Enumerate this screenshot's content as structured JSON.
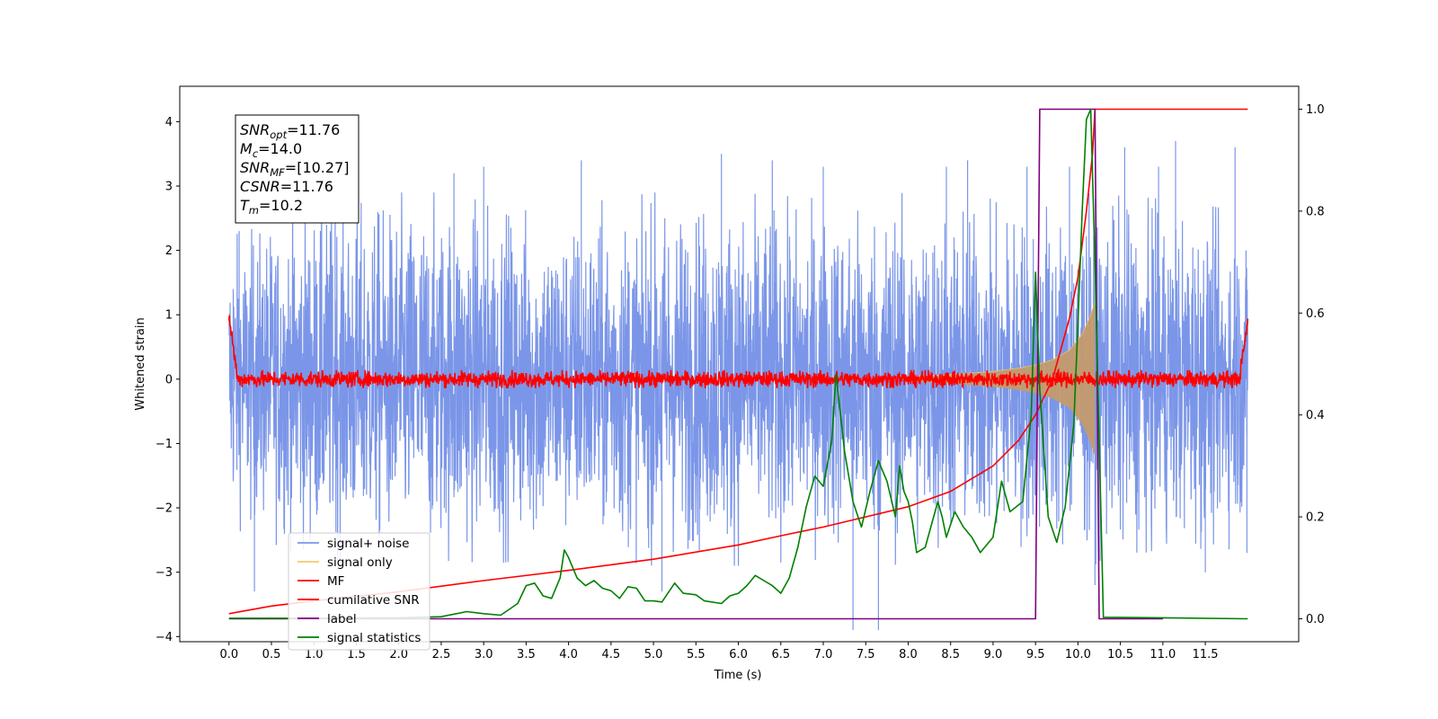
{
  "chart_data": {
    "type": "line",
    "title": "",
    "xlabel": "Time (s)",
    "ylabel": "Whitened strain",
    "xlim": [
      -0.58,
      12.6
    ],
    "ylim": [
      -4.08,
      4.55
    ],
    "y2lim": [
      -0.045,
      1.045
    ],
    "x_ticks": [
      0.0,
      0.5,
      1.0,
      1.5,
      2.0,
      2.5,
      3.0,
      3.5,
      4.0,
      4.5,
      5.0,
      5.5,
      6.0,
      6.5,
      7.0,
      7.5,
      8.0,
      8.5,
      9.0,
      9.5,
      10.0,
      10.5,
      11.0,
      11.5
    ],
    "x_tick_labels": [
      "0.0",
      "0.5",
      "1.0",
      "1.5",
      "2.0",
      "2.5",
      "3.0",
      "3.5",
      "4.0",
      "4.5",
      "5.0",
      "5.5",
      "6.0",
      "6.5",
      "7.0",
      "7.5",
      "8.0",
      "8.5",
      "9.0",
      "9.5",
      "10.0",
      "10.5",
      "11.0",
      "11.5"
    ],
    "y_ticks": [
      4,
      3,
      2,
      1,
      0,
      -1,
      -2,
      -3,
      -4
    ],
    "y_tick_labels": [
      "4",
      "3",
      "2",
      "1",
      "0",
      "−1",
      "−2",
      "−3",
      "−4"
    ],
    "y2_ticks": [
      1.0,
      0.8,
      0.6,
      0.4,
      0.2,
      0.0
    ],
    "y2_tick_labels": [
      "1.0",
      "0.8",
      "0.6",
      "0.4",
      "0.2",
      "0.0"
    ],
    "grid": false,
    "legend_position": "lower-left",
    "series": [
      {
        "name": "signal+ noise",
        "color": "#7b96e8",
        "axis": "left",
        "kind": "noise_band",
        "x_range": [
          0.0,
          12.0
        ],
        "envelope": [
          [
            0.0,
            2.3
          ],
          [
            1.0,
            2.8
          ],
          [
            2.0,
            2.9
          ],
          [
            3.0,
            2.9
          ],
          [
            4.0,
            2.7
          ],
          [
            5.0,
            2.9
          ],
          [
            6.0,
            2.9
          ],
          [
            7.0,
            2.8
          ],
          [
            8.0,
            2.9
          ],
          [
            9.0,
            2.8
          ],
          [
            10.0,
            2.9
          ],
          [
            11.0,
            2.8
          ],
          [
            12.0,
            2.6
          ]
        ],
        "peaks": [
          [
            0.05,
            1.4
          ],
          [
            0.12,
            2.3
          ],
          [
            0.3,
            -3.3
          ],
          [
            1.25,
            3.6
          ],
          [
            2.65,
            3.2
          ],
          [
            3.0,
            3.3
          ],
          [
            4.15,
            3.4
          ],
          [
            5.1,
            -3.3
          ],
          [
            5.8,
            3.5
          ],
          [
            6.4,
            3.4
          ],
          [
            7.0,
            3.3
          ],
          [
            7.35,
            -3.9
          ],
          [
            7.65,
            -3.9
          ],
          [
            8.45,
            3.3
          ],
          [
            8.7,
            3.4
          ],
          [
            9.4,
            3.3
          ],
          [
            9.9,
            3.3
          ],
          [
            10.2,
            -3.2
          ],
          [
            10.55,
            3.6
          ],
          [
            10.95,
            3.3
          ],
          [
            11.15,
            3.7
          ],
          [
            11.5,
            -3.0
          ],
          [
            11.85,
            3.6
          ],
          [
            11.98,
            2.0
          ],
          [
            11.99,
            -2.7
          ]
        ]
      },
      {
        "name": "signal only",
        "color": "#f5c870",
        "axis": "left",
        "kind": "chirp",
        "envelope": [
          [
            8.0,
            0.04
          ],
          [
            8.5,
            0.07
          ],
          [
            9.0,
            0.12
          ],
          [
            9.3,
            0.17
          ],
          [
            9.5,
            0.22
          ],
          [
            9.7,
            0.3
          ],
          [
            9.9,
            0.45
          ],
          [
            10.05,
            0.7
          ],
          [
            10.15,
            1.0
          ],
          [
            10.2,
            1.2
          ],
          [
            10.22,
            0.0
          ]
        ]
      },
      {
        "name": "MF",
        "color": "#ff0000",
        "axis": "left",
        "kind": "mf_band",
        "x_range": [
          0.0,
          12.0
        ],
        "start_value": 1.0,
        "end_value": 0.87,
        "band_amplitude": 0.14
      },
      {
        "name": "cumilative SNR",
        "color": "#ff0000",
        "axis": "right",
        "kind": "line",
        "points": [
          [
            0.0,
            0.01
          ],
          [
            0.5,
            0.025
          ],
          [
            1.0,
            0.035
          ],
          [
            2.0,
            0.053
          ],
          [
            3.0,
            0.075
          ],
          [
            4.0,
            0.095
          ],
          [
            5.0,
            0.117
          ],
          [
            6.0,
            0.145
          ],
          [
            6.5,
            0.163
          ],
          [
            7.0,
            0.18
          ],
          [
            7.5,
            0.2
          ],
          [
            8.0,
            0.22
          ],
          [
            8.5,
            0.25
          ],
          [
            9.0,
            0.3
          ],
          [
            9.3,
            0.35
          ],
          [
            9.5,
            0.4
          ],
          [
            9.7,
            0.47
          ],
          [
            9.9,
            0.59
          ],
          [
            10.0,
            0.67
          ],
          [
            10.1,
            0.8
          ],
          [
            10.17,
            0.91
          ],
          [
            10.2,
            1.0
          ],
          [
            12.0,
            1.0
          ]
        ]
      },
      {
        "name": "label",
        "color": "#800080",
        "axis": "right",
        "kind": "line",
        "points": [
          [
            0.0,
            0.0
          ],
          [
            9.5,
            0.0
          ],
          [
            9.55,
            1.0
          ],
          [
            10.2,
            1.0
          ],
          [
            10.25,
            0.0
          ],
          [
            11.0,
            0.0
          ]
        ]
      },
      {
        "name": "signal statistics",
        "color": "#008000",
        "axis": "right",
        "kind": "line",
        "points": [
          [
            0.0,
            0.001
          ],
          [
            1.0,
            0.001
          ],
          [
            2.0,
            0.002
          ],
          [
            2.5,
            0.004
          ],
          [
            2.8,
            0.014
          ],
          [
            3.0,
            0.01
          ],
          [
            3.2,
            0.007
          ],
          [
            3.4,
            0.03
          ],
          [
            3.5,
            0.065
          ],
          [
            3.6,
            0.07
          ],
          [
            3.7,
            0.045
          ],
          [
            3.8,
            0.04
          ],
          [
            3.9,
            0.08
          ],
          [
            3.95,
            0.135
          ],
          [
            4.0,
            0.12
          ],
          [
            4.1,
            0.08
          ],
          [
            4.2,
            0.065
          ],
          [
            4.3,
            0.075
          ],
          [
            4.4,
            0.06
          ],
          [
            4.5,
            0.055
          ],
          [
            4.6,
            0.04
          ],
          [
            4.7,
            0.063
          ],
          [
            4.8,
            0.06
          ],
          [
            4.9,
            0.035
          ],
          [
            5.0,
            0.035
          ],
          [
            5.1,
            0.033
          ],
          [
            5.25,
            0.07
          ],
          [
            5.35,
            0.05
          ],
          [
            5.5,
            0.047
          ],
          [
            5.6,
            0.035
          ],
          [
            5.8,
            0.03
          ],
          [
            5.9,
            0.045
          ],
          [
            6.0,
            0.05
          ],
          [
            6.1,
            0.065
          ],
          [
            6.2,
            0.085
          ],
          [
            6.3,
            0.075
          ],
          [
            6.4,
            0.065
          ],
          [
            6.5,
            0.05
          ],
          [
            6.6,
            0.08
          ],
          [
            6.7,
            0.14
          ],
          [
            6.8,
            0.22
          ],
          [
            6.9,
            0.28
          ],
          [
            7.0,
            0.26
          ],
          [
            7.1,
            0.35
          ],
          [
            7.15,
            0.48
          ],
          [
            7.25,
            0.33
          ],
          [
            7.35,
            0.23
          ],
          [
            7.45,
            0.18
          ],
          [
            7.55,
            0.25
          ],
          [
            7.65,
            0.31
          ],
          [
            7.75,
            0.27
          ],
          [
            7.85,
            0.2
          ],
          [
            7.9,
            0.3
          ],
          [
            7.95,
            0.25
          ],
          [
            8.0,
            0.23
          ],
          [
            8.05,
            0.19
          ],
          [
            8.1,
            0.13
          ],
          [
            8.2,
            0.14
          ],
          [
            8.35,
            0.23
          ],
          [
            8.4,
            0.2
          ],
          [
            8.45,
            0.16
          ],
          [
            8.55,
            0.21
          ],
          [
            8.65,
            0.18
          ],
          [
            8.75,
            0.16
          ],
          [
            8.85,
            0.13
          ],
          [
            9.0,
            0.16
          ],
          [
            9.1,
            0.27
          ],
          [
            9.2,
            0.21
          ],
          [
            9.35,
            0.23
          ],
          [
            9.45,
            0.4
          ],
          [
            9.5,
            0.68
          ],
          [
            9.55,
            0.45
          ],
          [
            9.65,
            0.2
          ],
          [
            9.75,
            0.15
          ],
          [
            9.85,
            0.22
          ],
          [
            9.95,
            0.38
          ],
          [
            10.0,
            0.58
          ],
          [
            10.05,
            0.8
          ],
          [
            10.1,
            0.98
          ],
          [
            10.15,
            1.0
          ],
          [
            10.2,
            0.7
          ],
          [
            10.3,
            0.003
          ],
          [
            11.0,
            0.002
          ],
          [
            12.0,
            0.0
          ]
        ]
      }
    ],
    "annotation": {
      "lines": [
        {
          "base": "SNR",
          "sub": "opt",
          "value": "=11.76"
        },
        {
          "base": "M",
          "sub": "c",
          "value": "=14.0"
        },
        {
          "base": "SNR",
          "sub": "MF",
          "value": "=[10.27]"
        },
        {
          "base": "CSNR",
          "sub": "",
          "value": "=11.76"
        },
        {
          "base": "T",
          "sub": "m",
          "value": "=10.2"
        }
      ]
    },
    "legend": [
      {
        "label": "signal+ noise",
        "color": "#7b96e8"
      },
      {
        "label": "signal only",
        "color": "#f5c870"
      },
      {
        "label": "MF",
        "color": "#ff0000"
      },
      {
        "label": "cumilative SNR",
        "color": "#ff0000"
      },
      {
        "label": "label",
        "color": "#800080"
      },
      {
        "label": "signal statistics",
        "color": "#008000"
      }
    ]
  }
}
